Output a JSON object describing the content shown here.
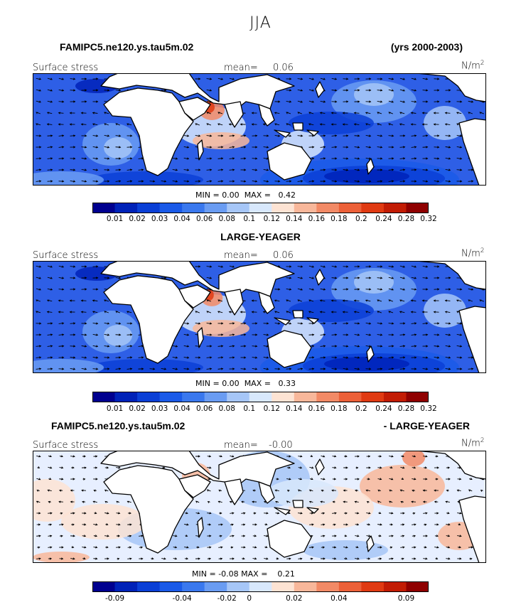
{
  "suptitle": "JJA",
  "colors": [
    "#00008f",
    "#0022b8",
    "#0a3fd6",
    "#1a5ae8",
    "#3a78ee",
    "#6a9cf2",
    "#a6c6f7",
    "#d8e8fc",
    "#fde3d3",
    "#f8b79a",
    "#f28a66",
    "#ec6038",
    "#e03a12",
    "#c21c04",
    "#8f0000"
  ],
  "ocean_base_colors": [
    "#2e5fe6",
    "#2e5fe6",
    "#e7efff"
  ],
  "panels": [
    {
      "title_left": "FAMIPC5.ne120.ys.tau5m.02",
      "title_right": "(yrs 2000-2003)",
      "label": "Surface stress",
      "mean_label": "mean=",
      "mean_value": "0.06",
      "units": "N/m",
      "units_sup": "2",
      "min_label": "MIN =",
      "min_value": "0.00",
      "max_label": "MAX =",
      "max_value": "0.42",
      "colorbar_labels": [
        "0.01",
        "0.02",
        "0.03",
        "0.04",
        "0.06",
        "0.08",
        "0.1",
        "0.12",
        "0.14",
        "0.16",
        "0.18",
        "0.2",
        "0.24",
        "0.28",
        "0.32"
      ]
    },
    {
      "title_left": "LARGE-YEAGER",
      "title_right": "",
      "label": "Surface stress",
      "mean_label": "mean=",
      "mean_value": "0.06",
      "units": "N/m",
      "units_sup": "2",
      "min_label": "MIN =",
      "min_value": "0.00",
      "max_label": "MAX =",
      "max_value": "0.33",
      "colorbar_labels": [
        "0.01",
        "0.02",
        "0.03",
        "0.04",
        "0.06",
        "0.08",
        "0.1",
        "0.12",
        "0.14",
        "0.16",
        "0.18",
        "0.2",
        "0.24",
        "0.28",
        "0.32"
      ]
    },
    {
      "title_left": "FAMIPC5.ne120.ys.tau5m.02",
      "title_right": "- LARGE-YEAGER",
      "label": "Surface stress",
      "mean_label": "mean=",
      "mean_value": "-0.00",
      "units": "N/m",
      "units_sup": "2",
      "min_label": "MIN =",
      "min_value": "-0.08",
      "max_label": "MAX =",
      "max_value": "0.21",
      "colorbar_labels": [
        "-0.09",
        "-0.04",
        "-0.02",
        "0",
        "0.02",
        "0.04",
        "0.09"
      ]
    }
  ]
}
